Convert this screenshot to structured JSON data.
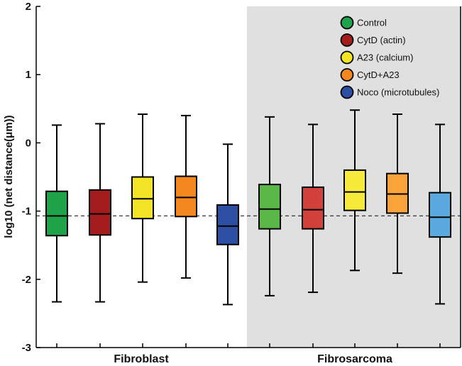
{
  "chart_data": {
    "type": "box",
    "ylabel": "log10 (net distance(μm))",
    "ylim": [
      -3,
      2
    ],
    "yticks": [
      -3,
      -2,
      -1,
      0,
      1,
      2
    ],
    "reference_line": -1.07,
    "groups": [
      {
        "name": "Fibroblast",
        "shaded": false
      },
      {
        "name": "Fibrosarcoma",
        "shaded": true
      }
    ],
    "legend": {
      "position": "top-right",
      "items": [
        {
          "label": "Control",
          "color": "#1fa34a"
        },
        {
          "label": "CytD (actin)",
          "color": "#a41c1c"
        },
        {
          "label": "A23 (calcium)",
          "color": "#f3e526"
        },
        {
          "label": "CytD+A23",
          "color": "#f4871e"
        },
        {
          "label": "Noco (microtubules)",
          "color": "#2c4fa4"
        }
      ]
    },
    "boxes": [
      {
        "group": "Fibroblast",
        "treatment": "Control",
        "color": "#1fa34a",
        "whisker_low": -2.33,
        "q1": -1.36,
        "median": -1.07,
        "q3": -0.71,
        "whisker_high": 0.26
      },
      {
        "group": "Fibroblast",
        "treatment": "CytD (actin)",
        "color": "#a41c1c",
        "whisker_low": -2.33,
        "q1": -1.35,
        "median": -1.04,
        "q3": -0.69,
        "whisker_high": 0.28
      },
      {
        "group": "Fibroblast",
        "treatment": "A23 (calcium)",
        "color": "#f3e526",
        "whisker_low": -2.04,
        "q1": -1.11,
        "median": -0.82,
        "q3": -0.5,
        "whisker_high": 0.42
      },
      {
        "group": "Fibroblast",
        "treatment": "CytD+A23",
        "color": "#f4871e",
        "whisker_low": -1.98,
        "q1": -1.08,
        "median": -0.8,
        "q3": -0.49,
        "whisker_high": 0.4
      },
      {
        "group": "Fibroblast",
        "treatment": "Noco (microtubules)",
        "color": "#2c4fa4",
        "whisker_low": -2.37,
        "q1": -1.49,
        "median": -1.22,
        "q3": -0.91,
        "whisker_high": -0.02
      },
      {
        "group": "Fibrosarcoma",
        "treatment": "Control",
        "color": "#5ab946",
        "whisker_low": -2.24,
        "q1": -1.26,
        "median": -0.97,
        "q3": -0.61,
        "whisker_high": 0.38
      },
      {
        "group": "Fibrosarcoma",
        "treatment": "CytD (actin)",
        "color": "#d2413b",
        "whisker_low": -2.19,
        "q1": -1.26,
        "median": -0.98,
        "q3": -0.65,
        "whisker_high": 0.27
      },
      {
        "group": "Fibrosarcoma",
        "treatment": "A23 (calcium)",
        "color": "#f7ea3b",
        "whisker_low": -1.87,
        "q1": -0.99,
        "median": -0.72,
        "q3": -0.4,
        "whisker_high": 0.48
      },
      {
        "group": "Fibrosarcoma",
        "treatment": "CytD+A23",
        "color": "#f8a43a",
        "whisker_low": -1.91,
        "q1": -1.03,
        "median": -0.75,
        "q3": -0.45,
        "whisker_high": 0.42
      },
      {
        "group": "Fibrosarcoma",
        "treatment": "Noco (microtubules)",
        "color": "#5aa9df",
        "whisker_low": -2.36,
        "q1": -1.38,
        "median": -1.09,
        "q3": -0.73,
        "whisker_high": 0.27
      }
    ]
  }
}
